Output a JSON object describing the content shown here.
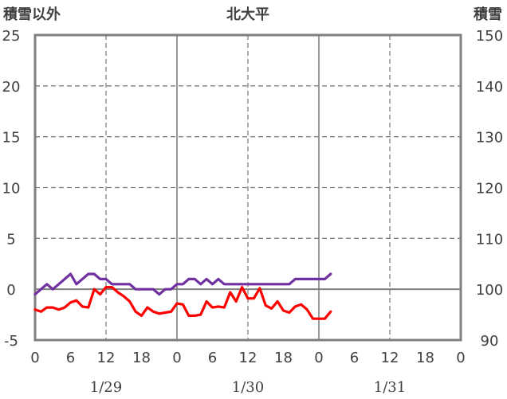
{
  "chart_data": {
    "type": "line",
    "title": "北大平",
    "left_axis_label": "積雪以外",
    "right_axis_label": "積雪",
    "ylim": [
      -5,
      25
    ],
    "y_ticks": [
      "-5",
      "0",
      "5",
      "10",
      "15",
      "20",
      "25"
    ],
    "y2lim": [
      90,
      150
    ],
    "y2_ticks": [
      "90",
      "100",
      "110",
      "120",
      "130",
      "140",
      "150"
    ],
    "x_hours_range": [
      0,
      72
    ],
    "x_ticks": [
      "0",
      "6",
      "12",
      "18",
      "0",
      "6",
      "12",
      "18",
      "0",
      "6",
      "12",
      "18",
      "0"
    ],
    "dates": [
      "1/29",
      "1/30",
      "1/31"
    ],
    "grid": true,
    "series": [
      {
        "color": "#7030A0",
        "axis": "left",
        "x": [
          0,
          1,
          2,
          3,
          4,
          5,
          6,
          7,
          8,
          9,
          10,
          11,
          12,
          13,
          14,
          15,
          16,
          17,
          18,
          19,
          20,
          21,
          22,
          23,
          24,
          25,
          26,
          27,
          28,
          29,
          30,
          31,
          32,
          33,
          34,
          35,
          36,
          37,
          38,
          39,
          40,
          41,
          42,
          43,
          44,
          45,
          46,
          47,
          48,
          49,
          50
        ],
        "values": [
          -0.5,
          0,
          0.5,
          0,
          0.5,
          1,
          1.5,
          0.5,
          1,
          1.5,
          1.5,
          1,
          1,
          0.5,
          0.5,
          0.5,
          0.5,
          0,
          0,
          0,
          0,
          -0.5,
          0,
          0,
          0.5,
          0.5,
          1,
          1,
          0.5,
          1,
          0.5,
          1,
          0.5,
          0.5,
          0.5,
          0.5,
          0.5,
          0.5,
          0.5,
          0.5,
          0.5,
          0.5,
          0.5,
          0.5,
          1,
          1,
          1,
          1,
          1,
          1,
          1.5
        ]
      },
      {
        "color": "#FF0000",
        "axis": "left",
        "x": [
          0,
          1,
          2,
          3,
          4,
          5,
          6,
          7,
          8,
          9,
          10,
          11,
          12,
          13,
          14,
          15,
          16,
          17,
          18,
          19,
          20,
          21,
          22,
          23,
          24,
          25,
          26,
          27,
          28,
          29,
          30,
          31,
          32,
          33,
          34,
          35,
          36,
          37,
          38,
          39,
          40,
          41,
          42,
          43,
          44,
          45,
          46,
          47,
          48,
          49,
          50
        ],
        "values": [
          -2,
          -2.2,
          -1.8,
          -1.8,
          -2,
          -1.8,
          -1.3,
          -1.1,
          -1.7,
          -1.8,
          0,
          -0.5,
          0.2,
          0.2,
          -0.3,
          -0.7,
          -1.2,
          -2.2,
          -2.6,
          -1.8,
          -2.2,
          -2.4,
          -2.3,
          -2.2,
          -1.4,
          -1.5,
          -2.6,
          -2.6,
          -2.5,
          -1.2,
          -1.8,
          -1.7,
          -1.8,
          -0.3,
          -1.2,
          0.2,
          -0.9,
          -0.9,
          0.1,
          -1.6,
          -1.9,
          -1.2,
          -2.1,
          -2.3,
          -1.7,
          -1.5,
          -2,
          -2.9,
          -2.9,
          -2.9,
          -2.2
        ]
      }
    ]
  }
}
